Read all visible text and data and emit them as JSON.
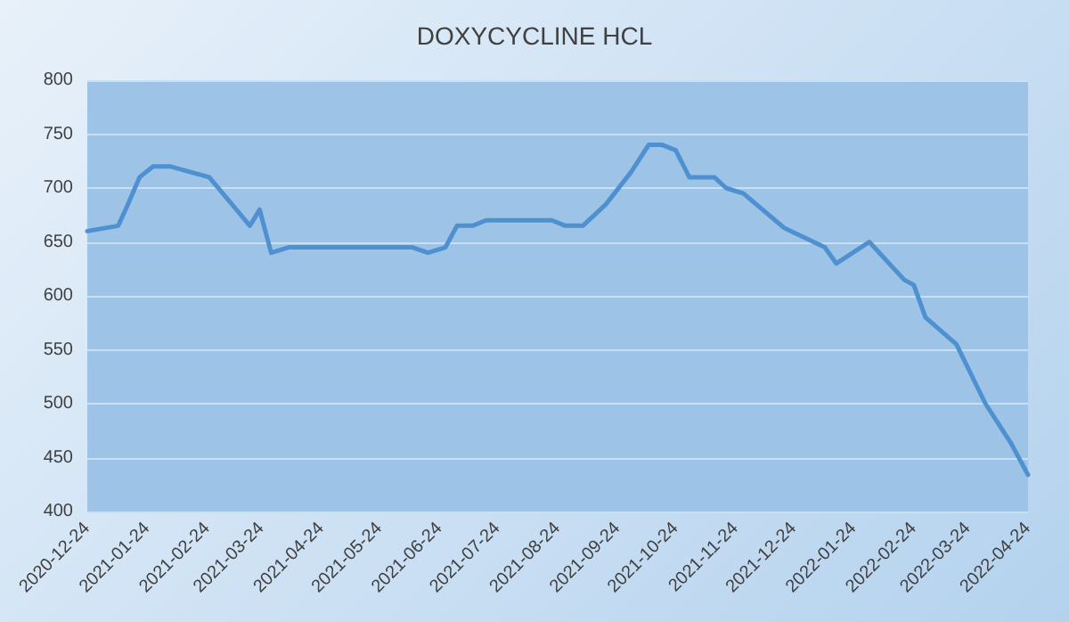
{
  "chart_data": {
    "type": "line",
    "title": "DOXYCYCLINE HCL",
    "x": [
      "2020-12-24",
      "2021-01-09",
      "2021-01-14",
      "2021-01-20",
      "2021-01-27",
      "2021-02-05",
      "2021-02-25",
      "2021-03-18",
      "2021-03-23",
      "2021-03-29",
      "2021-04-07",
      "2021-06-10",
      "2021-06-18",
      "2021-06-27",
      "2021-07-03",
      "2021-07-11",
      "2021-07-18",
      "2021-08-21",
      "2021-08-28",
      "2021-09-06",
      "2021-09-18",
      "2021-10-01",
      "2021-10-10",
      "2021-10-17",
      "2021-10-24",
      "2021-10-31",
      "2021-11-13",
      "2021-11-19",
      "2021-11-28",
      "2021-12-19",
      "2022-01-09",
      "2022-01-15",
      "2022-02-01",
      "2022-02-19",
      "2022-02-24",
      "2022-03-02",
      "2022-03-18",
      "2022-04-02",
      "2022-04-15",
      "2022-04-24"
    ],
    "series": [
      {
        "color": "#4f91d0",
        "values": [
          660,
          665,
          685,
          710,
          720,
          720,
          710,
          665,
          680,
          640,
          645,
          645,
          640,
          645,
          665,
          665,
          670,
          670,
          665,
          665,
          685,
          715,
          740,
          740,
          735,
          710,
          710,
          700,
          695,
          663,
          645,
          630,
          650,
          615,
          610,
          580,
          555,
          500,
          464,
          434
        ]
      }
    ],
    "xlim": [
      "2020-12-24",
      "2022-04-24"
    ],
    "xticks": [
      "2020-12-24",
      "2021-01-24",
      "2021-02-24",
      "2021-03-24",
      "2021-04-24",
      "2021-05-24",
      "2021-06-24",
      "2021-07-24",
      "2021-08-24",
      "2021-09-24",
      "2021-10-24",
      "2021-11-24",
      "2021-12-24",
      "2022-01-24",
      "2022-02-24",
      "2022-03-24",
      "2022-04-24"
    ],
    "ylim": [
      400,
      800
    ],
    "yticks": [
      400,
      450,
      500,
      550,
      600,
      650,
      700,
      750,
      800
    ],
    "grid": "y",
    "marker": "none",
    "line_style": "solid"
  }
}
